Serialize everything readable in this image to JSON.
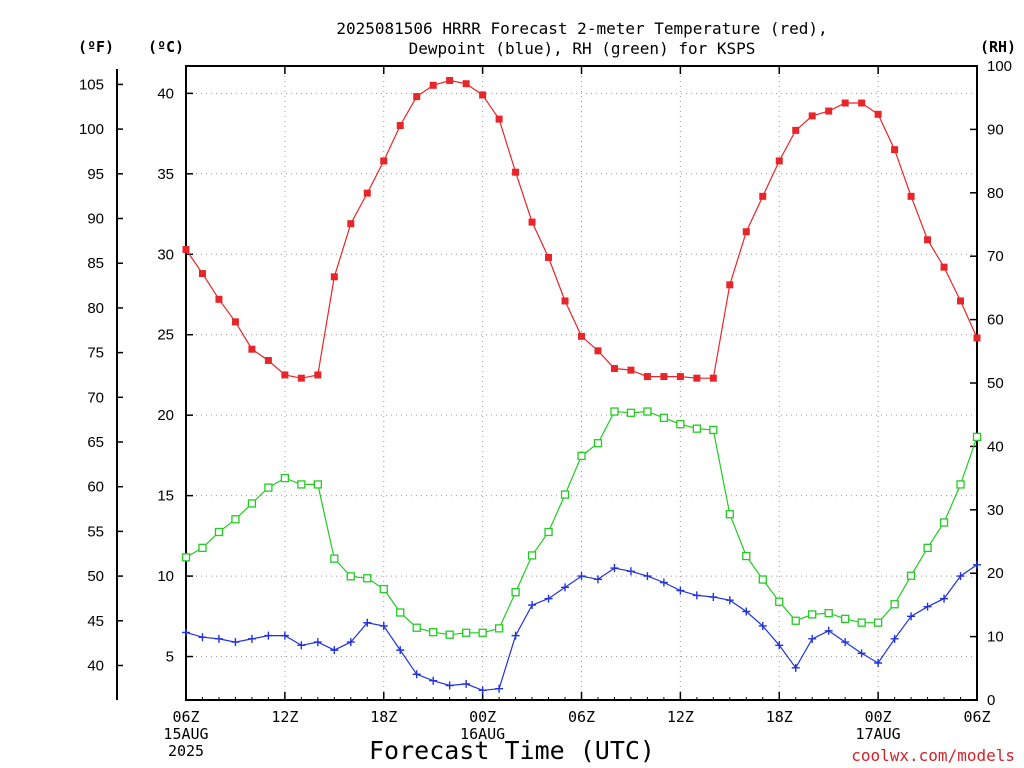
{
  "title_line1": "2025081506 HRRR Forecast 2-meter Temperature (red),",
  "title_line2": "Dewpoint (blue), RH (green) for KSPS",
  "unit_f": "(ºF)",
  "unit_c": "(ºC)",
  "unit_rh": "(RH)",
  "xlabel": "Forecast Time (UTC)",
  "credit": "coolwx.com/models",
  "colors": {
    "temperature": "#e8262a",
    "dewpoint": "#2233dd",
    "rh": "#22cc22",
    "credit": "#d2232a"
  },
  "chart_data": {
    "type": "line",
    "x_unit": "forecast hour (hourly, starting 2025-08-15 06Z)",
    "x": [
      0,
      1,
      2,
      3,
      4,
      5,
      6,
      7,
      8,
      9,
      10,
      11,
      12,
      13,
      14,
      15,
      16,
      17,
      18,
      19,
      20,
      21,
      22,
      23,
      24,
      25,
      26,
      27,
      28,
      29,
      30,
      31,
      32,
      33,
      34,
      35,
      36,
      37,
      38,
      39,
      40,
      41,
      42,
      43,
      44,
      45,
      46,
      47,
      48
    ],
    "x_ticks": [
      {
        "hour": 0,
        "lines": [
          "06Z",
          "15AUG",
          "2025"
        ]
      },
      {
        "hour": 6,
        "lines": [
          "12Z"
        ]
      },
      {
        "hour": 12,
        "lines": [
          "18Z"
        ]
      },
      {
        "hour": 18,
        "lines": [
          "00Z",
          "16AUG"
        ]
      },
      {
        "hour": 24,
        "lines": [
          "06Z"
        ]
      },
      {
        "hour": 30,
        "lines": [
          "12Z"
        ]
      },
      {
        "hour": 36,
        "lines": [
          "18Z"
        ]
      },
      {
        "hour": 42,
        "lines": [
          "00Z",
          "17AUG"
        ]
      },
      {
        "hour": 48,
        "lines": [
          "06Z"
        ]
      }
    ],
    "xlim": [
      0,
      48
    ],
    "ylim_c": [
      2.3,
      41.7
    ],
    "yticks_c": [
      5,
      10,
      15,
      20,
      25,
      30,
      35,
      40
    ],
    "yticks_f": [
      40,
      45,
      50,
      55,
      60,
      65,
      70,
      75,
      80,
      85,
      90,
      95,
      100,
      105
    ],
    "ylim_rh": [
      0,
      100
    ],
    "yticks_rh": [
      0,
      10,
      20,
      30,
      40,
      50,
      60,
      70,
      80,
      90,
      100
    ],
    "grid": true,
    "series": [
      {
        "name": "Temperature",
        "axis": "celsius",
        "marker": "filled-square",
        "color": "#e8262a",
        "values": [
          30.3,
          28.8,
          27.2,
          25.8,
          24.1,
          23.4,
          22.5,
          22.3,
          22.5,
          28.6,
          31.9,
          33.8,
          35.8,
          38.0,
          39.8,
          40.5,
          40.8,
          40.6,
          39.9,
          38.4,
          35.1,
          32.0,
          29.8,
          27.1,
          24.9,
          24.0,
          22.9,
          22.8,
          22.4,
          22.4,
          22.4,
          22.3,
          22.3,
          28.1,
          31.4,
          33.6,
          35.8,
          37.7,
          38.6,
          38.9,
          39.4,
          39.4,
          38.7,
          36.5,
          33.6,
          30.9,
          29.2,
          27.1,
          24.8
        ]
      },
      {
        "name": "Dewpoint",
        "axis": "celsius",
        "marker": "plus",
        "color": "#2233dd",
        "values": [
          6.5,
          6.2,
          6.1,
          5.9,
          6.1,
          6.3,
          6.3,
          5.7,
          5.9,
          5.4,
          5.9,
          7.1,
          6.9,
          5.4,
          3.9,
          3.5,
          3.2,
          3.3,
          2.9,
          3.0,
          6.3,
          8.2,
          8.6,
          9.3,
          10.0,
          9.8,
          10.5,
          10.3,
          10.0,
          9.6,
          9.1,
          8.8,
          8.7,
          8.5,
          7.8,
          6.9,
          5.7,
          4.3,
          6.1,
          6.6,
          5.9,
          5.2,
          4.6,
          6.1,
          7.5,
          8.1,
          8.6,
          10.0,
          10.7
        ]
      },
      {
        "name": "RH",
        "axis": "rh",
        "marker": "open-square",
        "color": "#22cc22",
        "values": [
          22.5,
          24.0,
          26.5,
          28.5,
          31.0,
          33.5,
          35.0,
          34.0,
          34.0,
          22.3,
          19.5,
          19.2,
          17.5,
          13.8,
          11.4,
          10.7,
          10.3,
          10.6,
          10.6,
          11.3,
          17.0,
          22.8,
          26.5,
          32.4,
          38.5,
          40.5,
          45.5,
          45.3,
          45.5,
          44.5,
          43.5,
          42.8,
          42.6,
          29.3,
          22.7,
          19.0,
          15.5,
          12.5,
          13.5,
          13.7,
          12.8,
          12.2,
          12.2,
          15.1,
          19.6,
          24.0,
          28.0,
          34.0,
          41.5
        ]
      }
    ]
  }
}
